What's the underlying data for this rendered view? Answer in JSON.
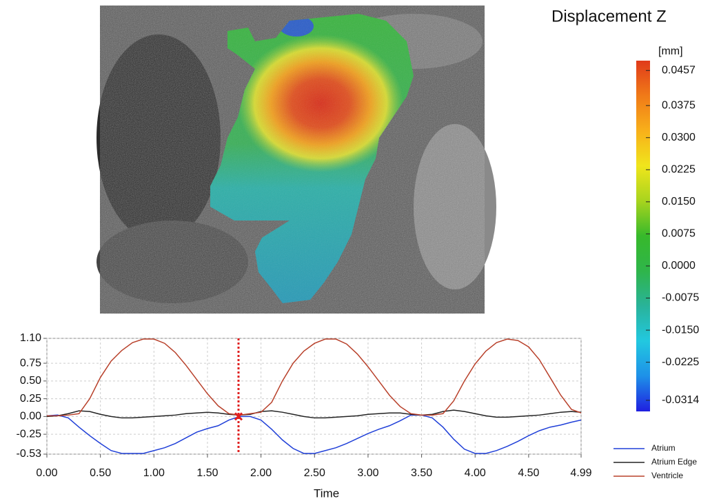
{
  "chart_data": [
    {
      "type": "heatmap",
      "title": "Displacement Z",
      "unit": "[mm]",
      "zlim": [
        -0.034,
        0.048
      ],
      "colors": [
        "#1f1fe0",
        "#1e90e8",
        "#22c8e0",
        "#29b39a",
        "#2fb54a",
        "#37b92b",
        "#a8d41e",
        "#f0e51c",
        "#f8b01a",
        "#f07a18",
        "#e03a1a"
      ],
      "ticks": [
        0.0457,
        0.0375,
        {
          "value": 0.03,
          "label": "0.0300"
        },
        0.0225,
        {
          "value": 0.015,
          "label": "0.0150"
        },
        0.0075,
        {
          "value": 0,
          "label": "0.0000"
        },
        -0.0075,
        {
          "value": -0.015,
          "label": "-0.0150"
        },
        -0.0225,
        -0.0314
      ]
    },
    {
      "type": "line",
      "x_label": "Time",
      "x": [
        0,
        0.1,
        0.2,
        0.3,
        0.4,
        0.5,
        0.6,
        0.7,
        0.8,
        0.9,
        1.0,
        1.1,
        1.2,
        1.3,
        1.4,
        1.5,
        1.6,
        1.7,
        1.8,
        1.9,
        2.0,
        2.1,
        2.2,
        2.3,
        2.4,
        2.5,
        2.6,
        2.7,
        2.8,
        2.9,
        3.0,
        3.1,
        3.2,
        3.3,
        3.4,
        3.5,
        3.6,
        3.7,
        3.8,
        3.9,
        4.0,
        4.1,
        4.2,
        4.3,
        4.4,
        4.5,
        4.6,
        4.7,
        4.8,
        4.9,
        4.99
      ],
      "xlim": [
        0,
        4.99
      ],
      "xticks": [
        {
          "value": 0,
          "label": "0.00"
        },
        {
          "value": 0.5,
          "label": "0.50"
        },
        {
          "value": 1,
          "label": "1.00"
        },
        {
          "value": 1.5,
          "label": "1.50"
        },
        {
          "value": 2,
          "label": "2.00"
        },
        {
          "value": 2.5,
          "label": "2.50"
        },
        {
          "value": 3,
          "label": "3.00"
        },
        {
          "value": 3.5,
          "label": "3.50"
        },
        {
          "value": 4,
          "label": "4.00"
        },
        {
          "value": 4.5,
          "label": "4.50"
        },
        4.99
      ],
      "ylim": [
        -0.53,
        1.1
      ],
      "yticks": [
        {
          "value": 1.1,
          "label": "1.10"
        },
        0.75,
        {
          "value": 0.5,
          "label": "0.50"
        },
        0.25,
        {
          "value": 0,
          "label": "0.00"
        },
        -0.25,
        -0.53
      ],
      "grid": true,
      "cursor_x": 1.79,
      "cursor_color": "#e02020",
      "legend": "lower-right",
      "series": [
        {
          "name": "Atrium",
          "color": "#1f3fd8",
          "values": [
            0.01,
            0.02,
            -0.02,
            -0.15,
            -0.27,
            -0.38,
            -0.48,
            -0.52,
            -0.52,
            -0.52,
            -0.48,
            -0.44,
            -0.38,
            -0.3,
            -0.22,
            -0.17,
            -0.13,
            -0.05,
            0.0,
            0.0,
            -0.05,
            -0.18,
            -0.33,
            -0.45,
            -0.52,
            -0.52,
            -0.48,
            -0.44,
            -0.38,
            -0.31,
            -0.24,
            -0.18,
            -0.13,
            -0.06,
            0.02,
            0.02,
            -0.02,
            -0.15,
            -0.32,
            -0.46,
            -0.52,
            -0.52,
            -0.48,
            -0.42,
            -0.35,
            -0.27,
            -0.2,
            -0.15,
            -0.12,
            -0.08,
            -0.05
          ]
        },
        {
          "name": "Atrium Edge",
          "color": "#222222",
          "values": [
            0.0,
            0.01,
            0.04,
            0.08,
            0.07,
            0.03,
            0.0,
            -0.02,
            -0.02,
            -0.01,
            0.0,
            0.01,
            0.02,
            0.04,
            0.05,
            0.06,
            0.05,
            0.03,
            0.02,
            0.03,
            0.07,
            0.08,
            0.06,
            0.03,
            0.0,
            -0.02,
            -0.02,
            -0.01,
            0.0,
            0.01,
            0.03,
            0.04,
            0.05,
            0.05,
            0.03,
            0.02,
            0.03,
            0.07,
            0.09,
            0.07,
            0.04,
            0.01,
            -0.01,
            -0.01,
            0.0,
            0.01,
            0.02,
            0.04,
            0.06,
            0.07,
            0.06
          ]
        },
        {
          "name": "Ventricle",
          "color": "#b8402a",
          "values": [
            0.01,
            0.01,
            0.02,
            0.04,
            0.25,
            0.55,
            0.78,
            0.93,
            1.04,
            1.09,
            1.09,
            1.03,
            0.9,
            0.72,
            0.52,
            0.32,
            0.15,
            0.04,
            0.02,
            0.04,
            0.06,
            0.2,
            0.5,
            0.75,
            0.92,
            1.03,
            1.09,
            1.09,
            1.02,
            0.88,
            0.7,
            0.5,
            0.3,
            0.14,
            0.04,
            0.02,
            0.02,
            0.04,
            0.22,
            0.5,
            0.74,
            0.92,
            1.04,
            1.09,
            1.07,
            0.98,
            0.8,
            0.55,
            0.3,
            0.1,
            0.05
          ]
        }
      ]
    }
  ]
}
